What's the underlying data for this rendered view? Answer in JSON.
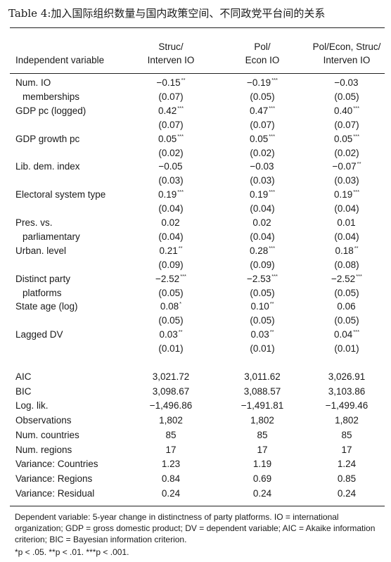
{
  "title": "Table 4:加入国际组织数量与国内政策空间、不同政党平台间的关系",
  "header": {
    "independent_variable": "Independent variable",
    "columns": [
      {
        "line1": "Struc/",
        "line2": "Interven IO"
      },
      {
        "line1": "Pol/",
        "line2": "Econ IO"
      },
      {
        "line1": "Pol/Econ, Struc/",
        "line2": "Interven IO"
      }
    ]
  },
  "rows": [
    {
      "label": "Num. IO",
      "label2": "memberships",
      "coef": [
        {
          "v": "−0.15",
          "sig": "**"
        },
        {
          "v": "−0.19",
          "sig": "***"
        },
        {
          "v": "−0.03",
          "sig": ""
        }
      ],
      "se": [
        "(0.07)",
        "(0.05)",
        "(0.05)"
      ]
    },
    {
      "label": "GDP pc (logged)",
      "label2": "",
      "coef": [
        {
          "v": "0.42",
          "sig": "***"
        },
        {
          "v": "0.47",
          "sig": "***"
        },
        {
          "v": "0.40",
          "sig": "***"
        }
      ],
      "se": [
        "(0.07)",
        "(0.07)",
        "(0.07)"
      ]
    },
    {
      "label": "GDP growth pc",
      "label2": "",
      "coef": [
        {
          "v": "0.05",
          "sig": "***"
        },
        {
          "v": "0.05",
          "sig": "***"
        },
        {
          "v": "0.05",
          "sig": "***"
        }
      ],
      "se": [
        "(0.02)",
        "(0.02)",
        "(0.02)"
      ]
    },
    {
      "label": "Lib. dem. index",
      "label2": "",
      "coef": [
        {
          "v": "−0.05",
          "sig": ""
        },
        {
          "v": "−0.03",
          "sig": ""
        },
        {
          "v": "−0.07",
          "sig": "**"
        }
      ],
      "se": [
        "(0.03)",
        "(0.03)",
        "(0.03)"
      ]
    },
    {
      "label": "Electoral system type",
      "label2": "",
      "coef": [
        {
          "v": "0.19",
          "sig": "***"
        },
        {
          "v": "0.19",
          "sig": "***"
        },
        {
          "v": "0.19",
          "sig": "***"
        }
      ],
      "se": [
        "(0.04)",
        "(0.04)",
        "(0.04)"
      ]
    },
    {
      "label": "Pres. vs.",
      "label2": "parliamentary",
      "coef": [
        {
          "v": "0.02",
          "sig": ""
        },
        {
          "v": "0.02",
          "sig": ""
        },
        {
          "v": "0.01",
          "sig": ""
        }
      ],
      "se": [
        "(0.04)",
        "(0.04)",
        "(0.04)"
      ]
    },
    {
      "label": "Urban. level",
      "label2": "",
      "coef": [
        {
          "v": "0.21",
          "sig": "**"
        },
        {
          "v": "0.28",
          "sig": "***"
        },
        {
          "v": "0.18",
          "sig": "**"
        }
      ],
      "se": [
        "(0.09)",
        "(0.09)",
        "(0.08)"
      ]
    },
    {
      "label": "Distinct party",
      "label2": "platforms",
      "coef": [
        {
          "v": "−2.52",
          "sig": "***"
        },
        {
          "v": "−2.53",
          "sig": "***"
        },
        {
          "v": "−2.52",
          "sig": "***"
        }
      ],
      "se": [
        "(0.05)",
        "(0.05)",
        "(0.05)"
      ]
    },
    {
      "label": "State age (log)",
      "label2": "",
      "coef": [
        {
          "v": "0.08",
          "sig": "*"
        },
        {
          "v": "0.10",
          "sig": "**"
        },
        {
          "v": "0.06",
          "sig": ""
        }
      ],
      "se": [
        "(0.05)",
        "(0.05)",
        "(0.05)"
      ]
    },
    {
      "label": "Lagged DV",
      "label2": "",
      "coef": [
        {
          "v": "0.03",
          "sig": "**"
        },
        {
          "v": "0.03",
          "sig": "**"
        },
        {
          "v": "0.04",
          "sig": "***"
        }
      ],
      "se": [
        "(0.01)",
        "(0.01)",
        "(0.01)"
      ]
    }
  ],
  "stats": [
    {
      "label": "AIC",
      "values": [
        "3,021.72",
        "3,011.62",
        "3,026.91"
      ]
    },
    {
      "label": "BIC",
      "values": [
        "3,098.67",
        "3,088.57",
        "3,103.86"
      ]
    },
    {
      "label": "Log. lik.",
      "values": [
        "−1,496.86",
        "−1,491.81",
        "−1,499.46"
      ]
    },
    {
      "label": "Observations",
      "values": [
        "1,802",
        "1,802",
        "1,802"
      ]
    },
    {
      "label": "Num. countries",
      "values": [
        "85",
        "85",
        "85"
      ]
    },
    {
      "label": "Num. regions",
      "values": [
        "17",
        "17",
        "17"
      ]
    },
    {
      "label": "Variance: Countries",
      "values": [
        "1.23",
        "1.19",
        "1.24"
      ]
    },
    {
      "label": "Variance: Regions",
      "values": [
        "0.84",
        "0.69",
        "0.85"
      ]
    },
    {
      "label": "Variance: Residual",
      "values": [
        "0.24",
        "0.24",
        "0.24"
      ]
    }
  ],
  "notes": {
    "text": "Dependent variable: 5-year change in distinctness of party platforms. IO = international organization; GDP = gross domestic product; DV = dependent variable; AIC = Akaike information criterion; BIC = Bayesian information criterion.",
    "significance": "*p < .05. **p < .01. ***p < .001."
  }
}
